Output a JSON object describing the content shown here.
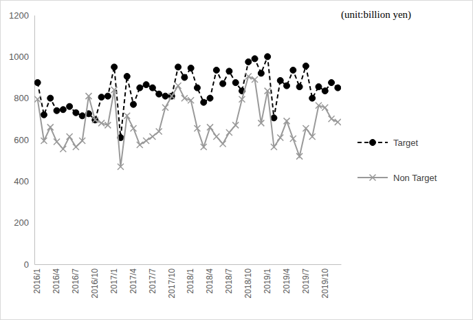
{
  "chart_data": {
    "type": "line",
    "annotation": "(unit:billion yen)",
    "categories": [
      "2016/1",
      null,
      null,
      "2016/4",
      null,
      null,
      "2016/7",
      null,
      null,
      "2016/10",
      null,
      null,
      "2017/1",
      null,
      null,
      "2017/4",
      null,
      null,
      "2017/7",
      null,
      null,
      "2017/10",
      null,
      null,
      "2018/1",
      null,
      null,
      "2018/4",
      null,
      null,
      "2018/7",
      null,
      null,
      "2018/10",
      null,
      null,
      "2019/1",
      null,
      null,
      "2019/4",
      null,
      null,
      "2019/7",
      null,
      null,
      "2019/10",
      null,
      null
    ],
    "series": [
      {
        "name": "Target",
        "color": "#000000",
        "marker": "circle",
        "line_style": "dashed",
        "values": [
          875,
          720,
          800,
          740,
          745,
          760,
          730,
          715,
          725,
          695,
          805,
          810,
          950,
          610,
          905,
          770,
          850,
          865,
          850,
          820,
          810,
          810,
          950,
          900,
          945,
          850,
          780,
          800,
          935,
          870,
          930,
          875,
          835,
          975,
          990,
          920,
          1000,
          705,
          885,
          860,
          935,
          855,
          955,
          800,
          855,
          835,
          875,
          850
        ]
      },
      {
        "name": "Non Target",
        "color": "#999999",
        "marker": "x",
        "line_style": "solid",
        "values": [
          795,
          595,
          660,
          590,
          555,
          615,
          565,
          595,
          810,
          695,
          680,
          670,
          840,
          470,
          715,
          655,
          575,
          595,
          615,
          640,
          755,
          810,
          860,
          800,
          790,
          655,
          565,
          660,
          615,
          580,
          635,
          670,
          795,
          905,
          890,
          680,
          835,
          565,
          610,
          690,
          605,
          520,
          655,
          615,
          765,
          755,
          700,
          685
        ]
      }
    ],
    "ylim": [
      0,
      1200
    ],
    "yticks": [
      0,
      200,
      400,
      600,
      800,
      1000,
      1200
    ],
    "grid": false,
    "legend": "right"
  }
}
